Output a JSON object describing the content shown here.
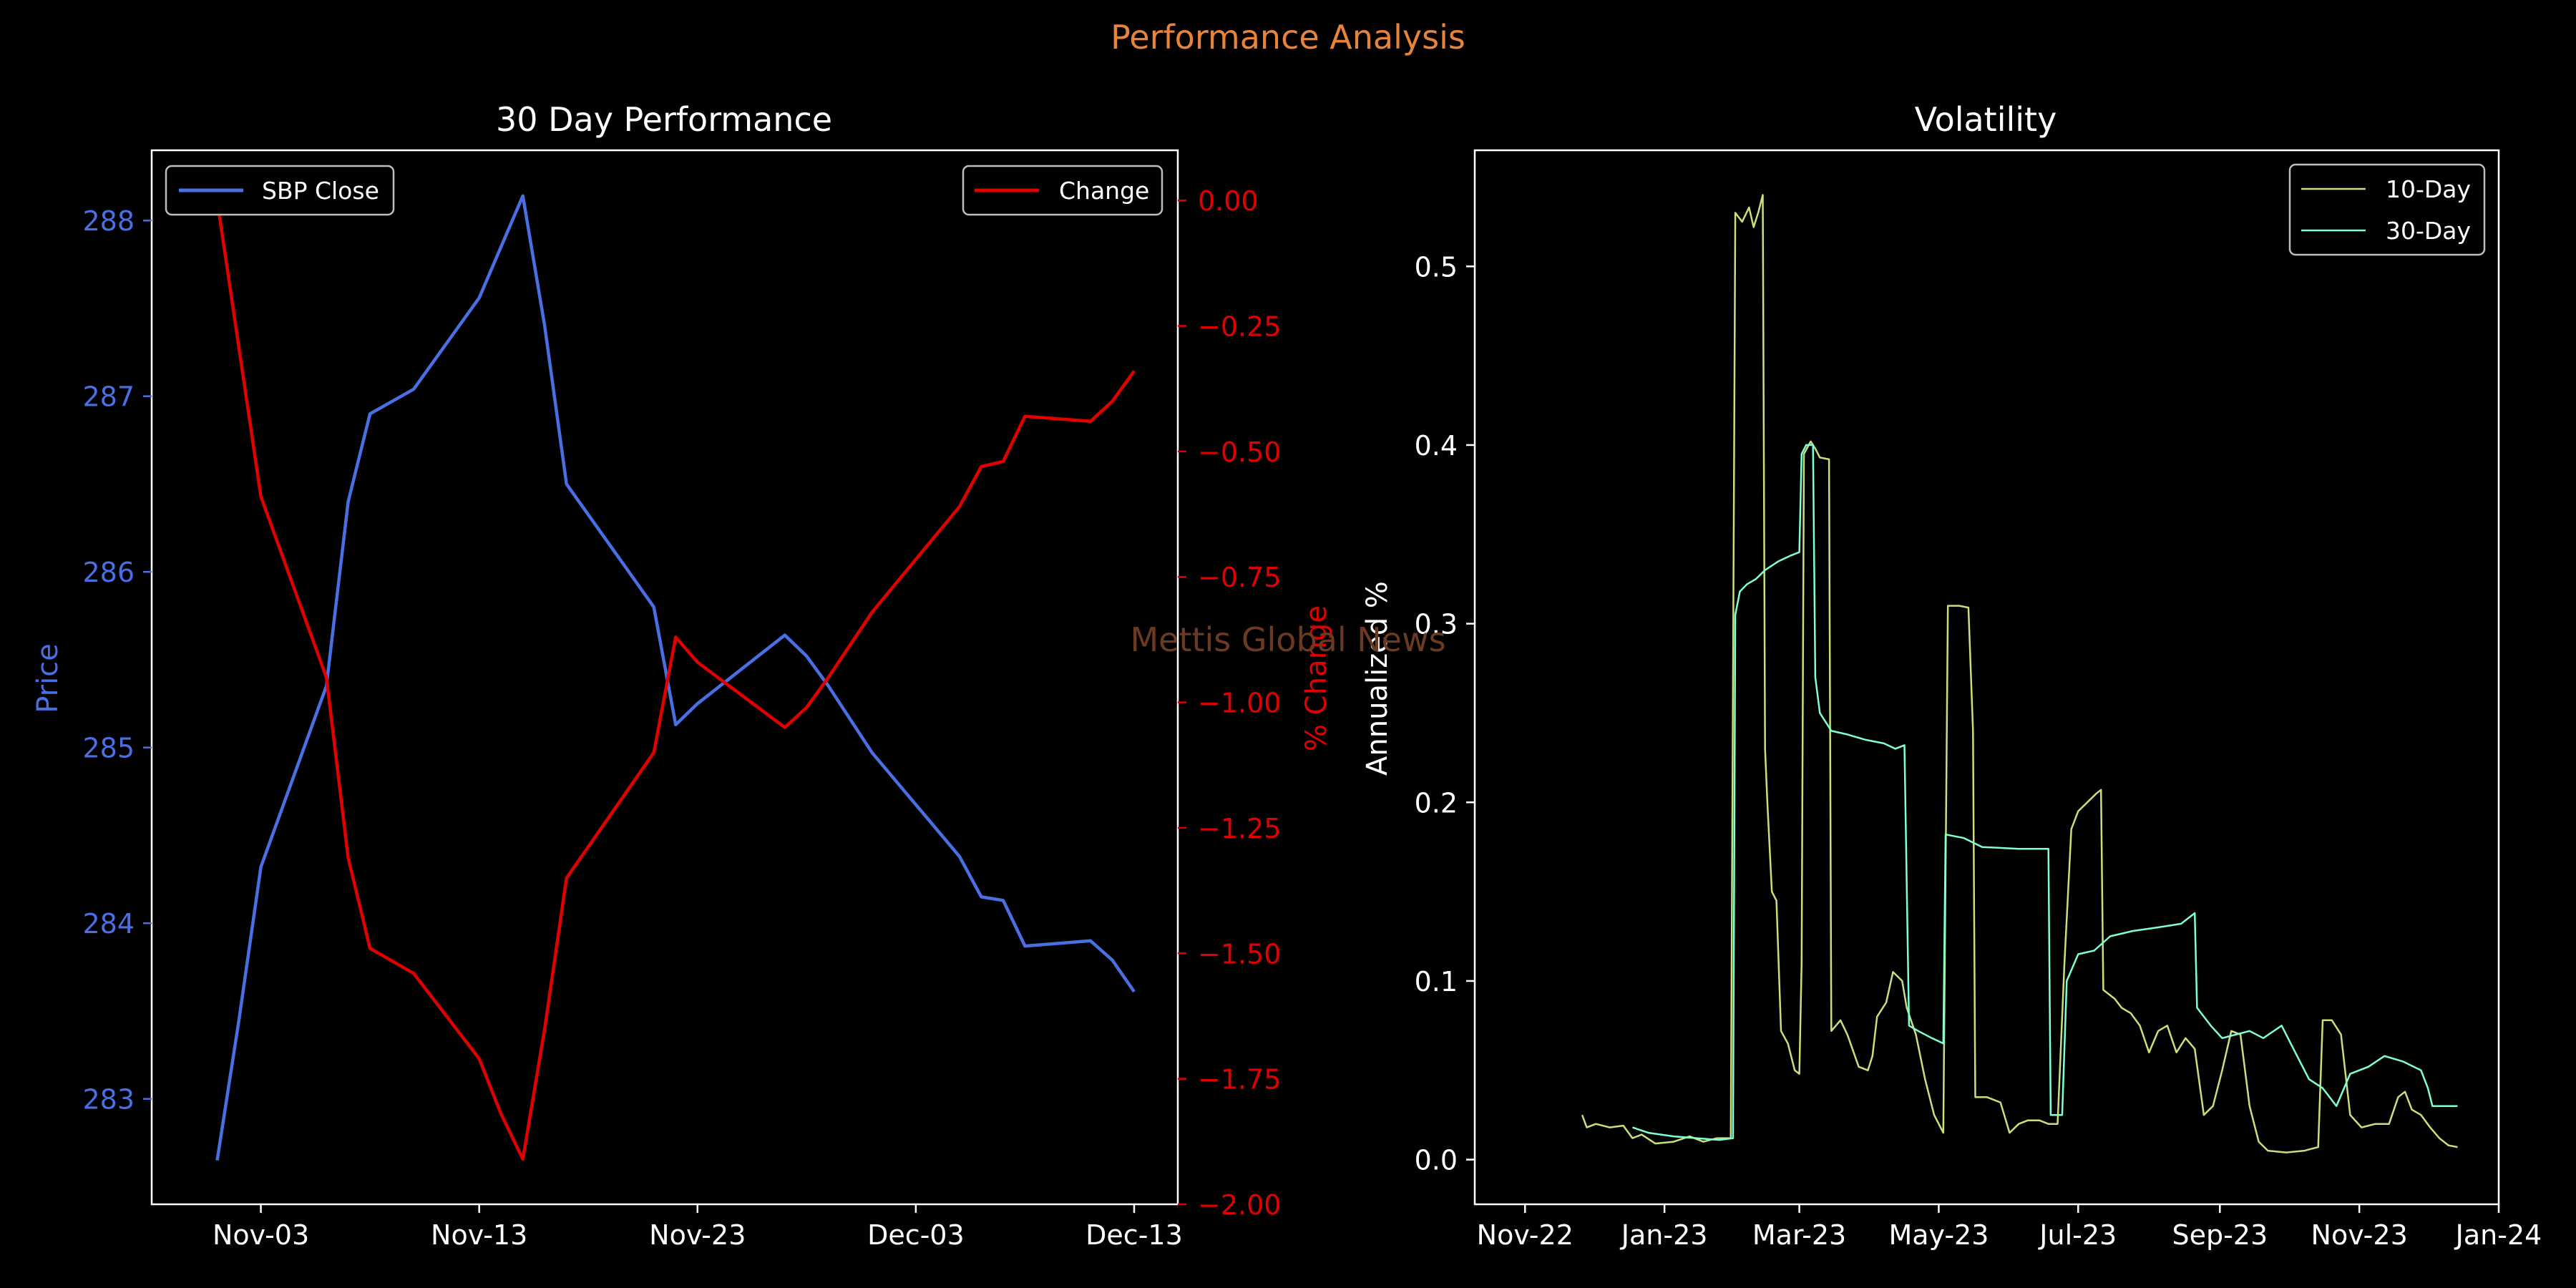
{
  "figure": {
    "suptitle": "Performance Analysis",
    "watermark": "Mettis Global News",
    "colors": {
      "background": "#000000",
      "suptitle": "#e8833a",
      "watermark": "#6b3a22",
      "text": "#ffffff",
      "price": "#4a6fe3",
      "change": "#e00000",
      "vol10": "#c8e07a",
      "vol30": "#7fffd4"
    }
  },
  "chart_data": [
    {
      "type": "line",
      "title": "30 Day Performance",
      "ylabel_left": "Price",
      "ylabel_right": "% Change",
      "x_ticks": [
        "Nov-03",
        "Nov-13",
        "Nov-23",
        "Dec-03",
        "Dec-13"
      ],
      "x_tick_dates": [
        "2023-11-03",
        "2023-11-13",
        "2023-11-23",
        "2023-12-03",
        "2023-12-13"
      ],
      "xlim": [
        "2023-10-29",
        "2023-12-15"
      ],
      "ylim_left": [
        282.4,
        288.4
      ],
      "ylim_right": [
        -2.0,
        0.1
      ],
      "left_ticks": [
        "283",
        "284",
        "285",
        "286",
        "287",
        "288"
      ],
      "right_ticks": [
        "0.00",
        "−0.25",
        "−0.50",
        "−0.75",
        "−1.00",
        "−1.25",
        "−1.50",
        "−1.75",
        "−2.00"
      ],
      "legend_left": {
        "position": "top-left",
        "entries": [
          "SBP Close"
        ]
      },
      "legend_right": {
        "position": "top-right",
        "entries": [
          "Change"
        ]
      },
      "series": [
        {
          "name": "SBP Close",
          "axis": "left",
          "points": [
            [
              "2023-11-01",
              282.65
            ],
            [
              "2023-11-02",
              283.45
            ],
            [
              "2023-11-03",
              284.32
            ],
            [
              "2023-11-06",
              285.35
            ],
            [
              "2023-11-07",
              286.4
            ],
            [
              "2023-11-08",
              286.9
            ],
            [
              "2023-11-10",
              287.04
            ],
            [
              "2023-11-13",
              287.56
            ],
            [
              "2023-11-14",
              287.85
            ],
            [
              "2023-11-15",
              288.14
            ],
            [
              "2023-11-16",
              287.4
            ],
            [
              "2023-11-17",
              286.5
            ],
            [
              "2023-11-21",
              285.8
            ],
            [
              "2023-11-22",
              285.13
            ],
            [
              "2023-11-23",
              285.25
            ],
            [
              "2023-11-27",
              285.64
            ],
            [
              "2023-11-28",
              285.52
            ],
            [
              "2023-11-29",
              285.35
            ],
            [
              "2023-12-01",
              284.97
            ],
            [
              "2023-12-05",
              284.38
            ],
            [
              "2023-12-06",
              284.15
            ],
            [
              "2023-12-07",
              284.13
            ],
            [
              "2023-12-08",
              283.87
            ],
            [
              "2023-12-11",
              283.9
            ],
            [
              "2023-12-12",
              283.79
            ],
            [
              "2023-12-13",
              283.61
            ]
          ]
        },
        {
          "name": "Change",
          "axis": "right",
          "points": [
            [
              "2023-11-01",
              0.0
            ],
            [
              "2023-11-03",
              -0.59
            ],
            [
              "2023-11-06",
              -0.95
            ],
            [
              "2023-11-07",
              -1.31
            ],
            [
              "2023-11-08",
              -1.49
            ],
            [
              "2023-11-10",
              -1.54
            ],
            [
              "2023-11-13",
              -1.71
            ],
            [
              "2023-11-14",
              -1.82
            ],
            [
              "2023-11-15",
              -1.91
            ],
            [
              "2023-11-16",
              -1.65
            ],
            [
              "2023-11-17",
              -1.35
            ],
            [
              "2023-11-21",
              -1.1
            ],
            [
              "2023-11-22",
              -0.87
            ],
            [
              "2023-11-23",
              -0.92
            ],
            [
              "2023-11-27",
              -1.05
            ],
            [
              "2023-11-28",
              -1.01
            ],
            [
              "2023-11-29",
              -0.95
            ],
            [
              "2023-12-01",
              -0.82
            ],
            [
              "2023-12-05",
              -0.61
            ],
            [
              "2023-12-06",
              -0.53
            ],
            [
              "2023-12-07",
              -0.52
            ],
            [
              "2023-12-08",
              -0.43
            ],
            [
              "2023-12-11",
              -0.44
            ],
            [
              "2023-12-12",
              -0.4
            ],
            [
              "2023-12-13",
              -0.34
            ]
          ]
        }
      ]
    },
    {
      "type": "line",
      "title": "Volatility",
      "ylabel": "Annualized %",
      "x_ticks": [
        "Nov-22",
        "Jan-23",
        "Mar-23",
        "May-23",
        "Jul-23",
        "Sep-23",
        "Nov-23",
        "Jan-24"
      ],
      "x_tick_dates": [
        "2022-11-01",
        "2023-01-01",
        "2023-03-01",
        "2023-05-01",
        "2023-07-01",
        "2023-09-01",
        "2023-11-01",
        "2024-01-01"
      ],
      "xlim": [
        "2022-10-10",
        "2024-01-01"
      ],
      "ylim": [
        -0.025,
        0.565
      ],
      "y_ticks": [
        "0.0",
        "0.1",
        "0.2",
        "0.3",
        "0.4",
        "0.5"
      ],
      "legend": {
        "position": "top-right",
        "entries": [
          "10-Day",
          "30-Day"
        ]
      },
      "series": [
        {
          "name": "10-Day",
          "points": [
            [
              "2022-11-26",
              0.025
            ],
            [
              "2022-11-28",
              0.018
            ],
            [
              "2022-12-02",
              0.02
            ],
            [
              "2022-12-08",
              0.018
            ],
            [
              "2022-12-14",
              0.019
            ],
            [
              "2022-12-18",
              0.012
            ],
            [
              "2022-12-22",
              0.014
            ],
            [
              "2022-12-28",
              0.009
            ],
            [
              "2023-01-05",
              0.01
            ],
            [
              "2023-01-12",
              0.013
            ],
            [
              "2023-01-18",
              0.01
            ],
            [
              "2023-01-24",
              0.012
            ],
            [
              "2023-01-30",
              0.012
            ],
            [
              "2023-02-01",
              0.53
            ],
            [
              "2023-02-04",
              0.525
            ],
            [
              "2023-02-07",
              0.533
            ],
            [
              "2023-02-09",
              0.522
            ],
            [
              "2023-02-11",
              0.53
            ],
            [
              "2023-02-13",
              0.54
            ],
            [
              "2023-02-14",
              0.23
            ],
            [
              "2023-02-15",
              0.2
            ],
            [
              "2023-02-17",
              0.15
            ],
            [
              "2023-02-19",
              0.145
            ],
            [
              "2023-02-21",
              0.072
            ],
            [
              "2023-02-24",
              0.065
            ],
            [
              "2023-02-27",
              0.05
            ],
            [
              "2023-03-01",
              0.048
            ],
            [
              "2023-03-02",
              0.11
            ],
            [
              "2023-03-03",
              0.395
            ],
            [
              "2023-03-06",
              0.402
            ],
            [
              "2023-03-08",
              0.398
            ],
            [
              "2023-03-10",
              0.393
            ],
            [
              "2023-03-14",
              0.392
            ],
            [
              "2023-03-15",
              0.072
            ],
            [
              "2023-03-19",
              0.078
            ],
            [
              "2023-03-22",
              0.07
            ],
            [
              "2023-03-27",
              0.052
            ],
            [
              "2023-03-31",
              0.05
            ],
            [
              "2023-04-02",
              0.058
            ],
            [
              "2023-04-04",
              0.08
            ],
            [
              "2023-04-08",
              0.088
            ],
            [
              "2023-04-11",
              0.105
            ],
            [
              "2023-04-15",
              0.1
            ],
            [
              "2023-04-17",
              0.085
            ],
            [
              "2023-04-21",
              0.07
            ],
            [
              "2023-04-25",
              0.045
            ],
            [
              "2023-04-29",
              0.025
            ],
            [
              "2023-05-03",
              0.015
            ],
            [
              "2023-05-05",
              0.31
            ],
            [
              "2023-05-10",
              0.31
            ],
            [
              "2023-05-14",
              0.309
            ],
            [
              "2023-05-16",
              0.24
            ],
            [
              "2023-05-17",
              0.035
            ],
            [
              "2023-05-22",
              0.035
            ],
            [
              "2023-05-28",
              0.032
            ],
            [
              "2023-06-01",
              0.015
            ],
            [
              "2023-06-05",
              0.02
            ],
            [
              "2023-06-09",
              0.022
            ],
            [
              "2023-06-14",
              0.022
            ],
            [
              "2023-06-18",
              0.02
            ],
            [
              "2023-06-22",
              0.02
            ],
            [
              "2023-06-25",
              0.11
            ],
            [
              "2023-06-28",
              0.185
            ],
            [
              "2023-07-01",
              0.195
            ],
            [
              "2023-07-05",
              0.2
            ],
            [
              "2023-07-09",
              0.205
            ],
            [
              "2023-07-11",
              0.207
            ],
            [
              "2023-07-12",
              0.095
            ],
            [
              "2023-07-17",
              0.09
            ],
            [
              "2023-07-20",
              0.085
            ],
            [
              "2023-07-24",
              0.082
            ],
            [
              "2023-07-28",
              0.075
            ],
            [
              "2023-08-01",
              0.06
            ],
            [
              "2023-08-05",
              0.072
            ],
            [
              "2023-08-09",
              0.075
            ],
            [
              "2023-08-13",
              0.06
            ],
            [
              "2023-08-17",
              0.068
            ],
            [
              "2023-08-21",
              0.062
            ],
            [
              "2023-08-25",
              0.025
            ],
            [
              "2023-08-29",
              0.03
            ],
            [
              "2023-09-02",
              0.05
            ],
            [
              "2023-09-06",
              0.072
            ],
            [
              "2023-09-10",
              0.07
            ],
            [
              "2023-09-14",
              0.03
            ],
            [
              "2023-09-18",
              0.01
            ],
            [
              "2023-09-22",
              0.005
            ],
            [
              "2023-09-30",
              0.004
            ],
            [
              "2023-10-08",
              0.005
            ],
            [
              "2023-10-14",
              0.007
            ],
            [
              "2023-10-16",
              0.078
            ],
            [
              "2023-10-20",
              0.078
            ],
            [
              "2023-10-24",
              0.07
            ],
            [
              "2023-10-28",
              0.025
            ],
            [
              "2023-11-02",
              0.018
            ],
            [
              "2023-11-08",
              0.02
            ],
            [
              "2023-11-14",
              0.02
            ],
            [
              "2023-11-18",
              0.035
            ],
            [
              "2023-11-21",
              0.038
            ],
            [
              "2023-11-24",
              0.028
            ],
            [
              "2023-11-28",
              0.025
            ],
            [
              "2023-12-02",
              0.018
            ],
            [
              "2023-12-06",
              0.012
            ],
            [
              "2023-12-10",
              0.008
            ],
            [
              "2023-12-14",
              0.007
            ]
          ]
        },
        {
          "name": "30-Day",
          "points": [
            [
              "2022-12-18",
              0.018
            ],
            [
              "2022-12-25",
              0.015
            ],
            [
              "2023-01-05",
              0.013
            ],
            [
              "2023-01-15",
              0.012
            ],
            [
              "2023-01-25",
              0.011
            ],
            [
              "2023-01-31",
              0.012
            ],
            [
              "2023-02-01",
              0.305
            ],
            [
              "2023-02-03",
              0.318
            ],
            [
              "2023-02-06",
              0.322
            ],
            [
              "2023-02-10",
              0.325
            ],
            [
              "2023-02-14",
              0.33
            ],
            [
              "2023-02-20",
              0.335
            ],
            [
              "2023-02-25",
              0.338
            ],
            [
              "2023-03-01",
              0.34
            ],
            [
              "2023-03-02",
              0.395
            ],
            [
              "2023-03-04",
              0.4
            ],
            [
              "2023-03-07",
              0.4
            ],
            [
              "2023-03-08",
              0.27
            ],
            [
              "2023-03-10",
              0.25
            ],
            [
              "2023-03-15",
              0.24
            ],
            [
              "2023-03-22",
              0.238
            ],
            [
              "2023-03-30",
              0.235
            ],
            [
              "2023-04-07",
              0.233
            ],
            [
              "2023-04-12",
              0.23
            ],
            [
              "2023-04-16",
              0.232
            ],
            [
              "2023-04-18",
              0.075
            ],
            [
              "2023-04-22",
              0.072
            ],
            [
              "2023-04-28",
              0.068
            ],
            [
              "2023-05-03",
              0.065
            ],
            [
              "2023-05-04",
              0.182
            ],
            [
              "2023-05-12",
              0.18
            ],
            [
              "2023-05-20",
              0.175
            ],
            [
              "2023-06-05",
              0.174
            ],
            [
              "2023-06-18",
              0.174
            ],
            [
              "2023-06-19",
              0.025
            ],
            [
              "2023-06-24",
              0.025
            ],
            [
              "2023-06-26",
              0.1
            ],
            [
              "2023-07-01",
              0.115
            ],
            [
              "2023-07-08",
              0.117
            ],
            [
              "2023-07-15",
              0.125
            ],
            [
              "2023-07-25",
              0.128
            ],
            [
              "2023-08-05",
              0.13
            ],
            [
              "2023-08-15",
              0.132
            ],
            [
              "2023-08-21",
              0.138
            ],
            [
              "2023-08-22",
              0.085
            ],
            [
              "2023-08-28",
              0.075
            ],
            [
              "2023-09-02",
              0.068
            ],
            [
              "2023-09-08",
              0.07
            ],
            [
              "2023-09-14",
              0.072
            ],
            [
              "2023-09-20",
              0.068
            ],
            [
              "2023-09-28",
              0.075
            ],
            [
              "2023-10-04",
              0.06
            ],
            [
              "2023-10-10",
              0.045
            ],
            [
              "2023-10-16",
              0.04
            ],
            [
              "2023-10-22",
              0.03
            ],
            [
              "2023-10-28",
              0.048
            ],
            [
              "2023-11-05",
              0.052
            ],
            [
              "2023-11-12",
              0.058
            ],
            [
              "2023-11-20",
              0.055
            ],
            [
              "2023-11-28",
              0.05
            ],
            [
              "2023-12-01",
              0.04
            ],
            [
              "2023-12-03",
              0.03
            ],
            [
              "2023-12-10",
              0.03
            ],
            [
              "2023-12-14",
              0.03
            ]
          ]
        }
      ]
    }
  ]
}
